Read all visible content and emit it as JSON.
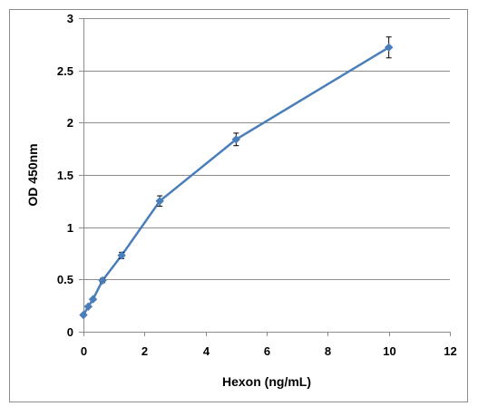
{
  "chart_data": {
    "type": "line",
    "title": "",
    "xlabel": "Hexon (ng/mL)",
    "ylabel": "OD 450nm",
    "xlim": [
      0,
      12
    ],
    "ylim": [
      0,
      3
    ],
    "x_ticks": [
      0,
      2,
      4,
      6,
      8,
      10,
      12
    ],
    "y_ticks": [
      0,
      0.5,
      1,
      1.5,
      2,
      2.5,
      3
    ],
    "x_tick_labels": [
      "0",
      "2",
      "4",
      "6",
      "8",
      "10",
      "12"
    ],
    "y_tick_labels": [
      "0",
      "0.5",
      "1",
      "1.5",
      "2",
      "2.5",
      "3"
    ],
    "grid": "horizontal",
    "legend": "none",
    "series": [
      {
        "color": "#4a7ebb",
        "marker": "diamond",
        "x": [
          0,
          0.156,
          0.3125,
          0.625,
          1.25,
          2.5,
          5,
          10
        ],
        "y": [
          0.16,
          0.24,
          0.31,
          0.49,
          0.73,
          1.25,
          1.84,
          2.72
        ],
        "error": [
          0.0,
          0.0,
          0.0,
          0.02,
          0.03,
          0.05,
          0.06,
          0.1
        ]
      }
    ]
  }
}
